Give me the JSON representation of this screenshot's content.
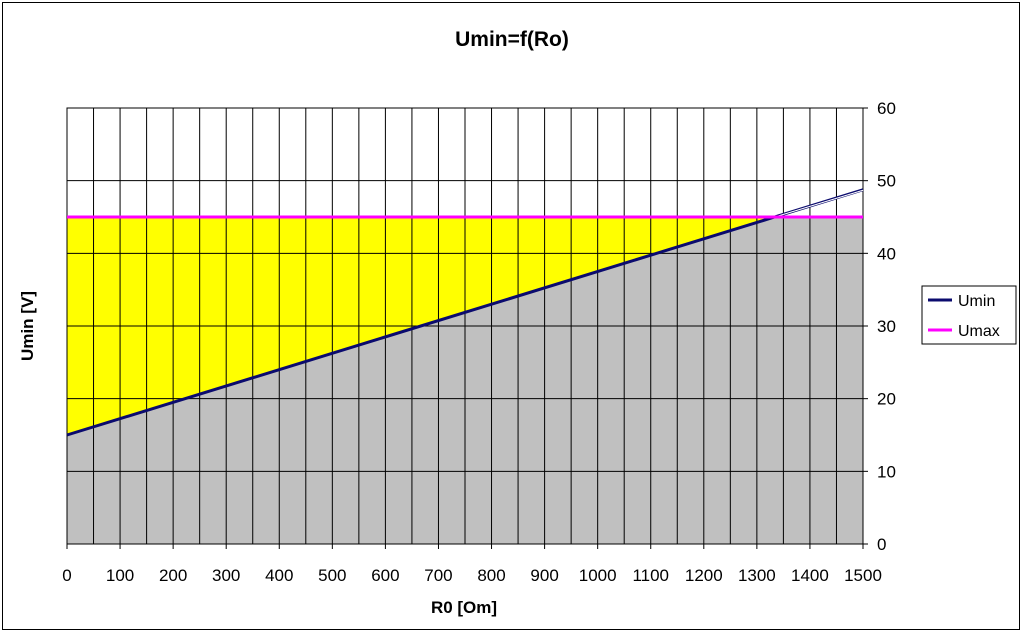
{
  "chart_data": {
    "type": "area",
    "title": "Umin=f(Ro)",
    "xlabel": "R0 [Om]",
    "ylabel": "Umin [V]",
    "xlim": [
      0,
      1500
    ],
    "ylim": [
      0,
      60
    ],
    "x_ticks": [
      0,
      100,
      200,
      300,
      400,
      500,
      600,
      700,
      800,
      900,
      1000,
      1100,
      1200,
      1300,
      1400,
      1500
    ],
    "y_ticks": [
      0,
      10,
      20,
      30,
      40,
      50,
      60
    ],
    "y_axis_side": "right",
    "grid": true,
    "legend_position": "right",
    "series": [
      {
        "name": "Umin",
        "x": [
          0,
          1500
        ],
        "y": [
          15,
          48.75
        ],
        "color": "#0b0b6e"
      },
      {
        "name": "Umax",
        "x": [
          0,
          1500
        ],
        "y": [
          45,
          45
        ],
        "color": "#ff00ff"
      }
    ],
    "fills": [
      {
        "region": "between Umin and Umax",
        "color": "#ffff00"
      },
      {
        "region": "below Umin",
        "color": "#c0c0c0"
      }
    ]
  }
}
